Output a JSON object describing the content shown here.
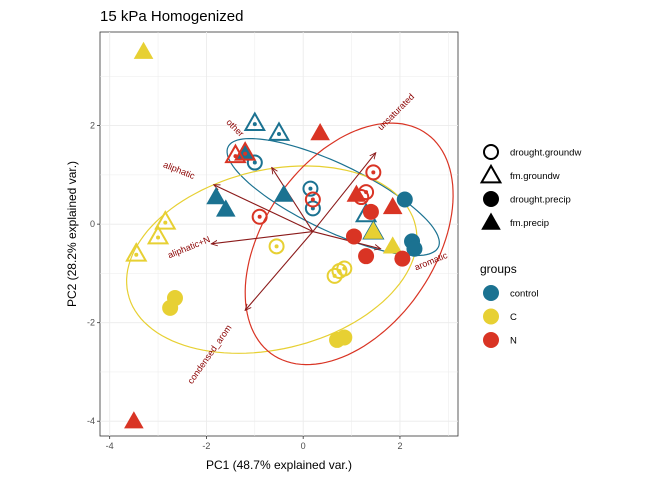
{
  "chart_data": {
    "type": "scatter",
    "title": "15 kPa Homogenized",
    "xlabel": "PC1 (48.7% explained var.)",
    "ylabel": "PC2 (28.2% explained var.)",
    "xlim": [
      -4.2,
      3.2
    ],
    "ylim": [
      -4.3,
      3.9
    ],
    "x_ticks": [
      -4,
      -2,
      0,
      2
    ],
    "y_ticks": [
      -4,
      -2,
      0,
      2
    ],
    "grid": true,
    "legend_position": "right",
    "colors": {
      "control": "#1B7291",
      "C": "#E7D033",
      "N": "#D93424",
      "arrow": "#8B1A1A"
    },
    "shape_legend": {
      "entries": [
        {
          "name": "drought.groundw",
          "shape": "circle-open"
        },
        {
          "name": "fm.groundw",
          "shape": "triangle-open"
        },
        {
          "name": "drought.precip",
          "shape": "circle-filled"
        },
        {
          "name": "fm.precip",
          "shape": "triangle-filled"
        }
      ]
    },
    "color_legend": {
      "title": "groups",
      "entries": [
        {
          "name": "control",
          "color": "#1B7291"
        },
        {
          "name": "C",
          "color": "#E7D033"
        },
        {
          "name": "N",
          "color": "#D93424"
        }
      ]
    },
    "loadings": [
      {
        "label": "unsaturated",
        "x": 1.5,
        "y": 1.45
      },
      {
        "label": "other",
        "x": -0.65,
        "y": 1.15
      },
      {
        "label": "aliphatic",
        "x": -1.85,
        "y": 0.8
      },
      {
        "label": "aliphatic+N",
        "x": -1.9,
        "y": -0.4
      },
      {
        "label": "aromatic",
        "x": 1.6,
        "y": -0.5
      },
      {
        "label": "condensed_arom",
        "x": -1.2,
        "y": -1.75
      }
    ],
    "arrow_origin": [
      0.2,
      -0.15
    ],
    "ellipses": [
      {
        "group": "control",
        "cx": 0.62,
        "cy": 0.55,
        "rx": 2.4,
        "ry": 0.68,
        "angle_deg": -25.0
      },
      {
        "group": "C",
        "cx": -0.65,
        "cy": -0.72,
        "rx": 3.05,
        "ry": 1.82,
        "angle_deg": 13.0
      },
      {
        "group": "N",
        "cx": 0.95,
        "cy": -0.4,
        "rx": 2.75,
        "ry": 1.75,
        "angle_deg": 54.0
      }
    ],
    "points": [
      {
        "x": -1.0,
        "y": 2.05,
        "group": "control",
        "type": "fm.groundw"
      },
      {
        "x": -0.5,
        "y": 1.85,
        "group": "control",
        "type": "fm.groundw"
      },
      {
        "x": -1.2,
        "y": 1.45,
        "group": "control",
        "type": "fm.precip"
      },
      {
        "x": -1.0,
        "y": 1.25,
        "group": "control",
        "type": "drought.groundw"
      },
      {
        "x": -1.8,
        "y": 0.55,
        "group": "control",
        "type": "fm.precip"
      },
      {
        "x": -1.6,
        "y": 0.3,
        "group": "control",
        "type": "fm.precip"
      },
      {
        "x": -0.4,
        "y": 0.6,
        "group": "control",
        "type": "fm.precip"
      },
      {
        "x": 0.15,
        "y": 0.72,
        "group": "control",
        "type": "drought.groundw"
      },
      {
        "x": 0.2,
        "y": 0.32,
        "group": "control",
        "type": "drought.groundw"
      },
      {
        "x": 1.3,
        "y": 0.2,
        "group": "control",
        "type": "fm.groundw"
      },
      {
        "x": 1.45,
        "y": -0.15,
        "group": "control",
        "type": "fm.groundw"
      },
      {
        "x": 2.1,
        "y": 0.5,
        "group": "control",
        "type": "drought.precip"
      },
      {
        "x": 2.25,
        "y": -0.35,
        "group": "control",
        "type": "drought.precip"
      },
      {
        "x": 2.3,
        "y": -0.5,
        "group": "control",
        "type": "drought.precip"
      },
      {
        "x": -3.3,
        "y": 3.5,
        "group": "C",
        "type": "fm.precip"
      },
      {
        "x": -2.85,
        "y": 0.05,
        "group": "C",
        "type": "fm.groundw"
      },
      {
        "x": -3.0,
        "y": -0.25,
        "group": "C",
        "type": "fm.groundw"
      },
      {
        "x": -3.45,
        "y": -0.6,
        "group": "C",
        "type": "fm.groundw"
      },
      {
        "x": -2.65,
        "y": -1.5,
        "group": "C",
        "type": "drought.precip"
      },
      {
        "x": -2.75,
        "y": -1.7,
        "group": "C",
        "type": "drought.precip"
      },
      {
        "x": -0.55,
        "y": -0.45,
        "group": "C",
        "type": "drought.groundw"
      },
      {
        "x": 0.65,
        "y": -1.05,
        "group": "C",
        "type": "drought.groundw"
      },
      {
        "x": 0.85,
        "y": -0.9,
        "group": "C",
        "type": "drought.groundw"
      },
      {
        "x": 0.75,
        "y": -0.95,
        "group": "C",
        "type": "drought.groundw"
      },
      {
        "x": 0.7,
        "y": -2.35,
        "group": "C",
        "type": "drought.precip"
      },
      {
        "x": 0.85,
        "y": -2.3,
        "group": "C",
        "type": "drought.precip"
      },
      {
        "x": 1.45,
        "y": -0.15,
        "group": "C",
        "type": "fm.precip"
      },
      {
        "x": 1.85,
        "y": -0.45,
        "group": "C",
        "type": "fm.precip"
      },
      {
        "x": -1.4,
        "y": 1.4,
        "group": "N",
        "type": "fm.groundw"
      },
      {
        "x": -1.2,
        "y": 1.45,
        "group": "N",
        "type": "fm.groundw"
      },
      {
        "x": 0.35,
        "y": 1.85,
        "group": "N",
        "type": "fm.precip"
      },
      {
        "x": -0.9,
        "y": 0.15,
        "group": "N",
        "type": "drought.groundw"
      },
      {
        "x": 0.2,
        "y": 0.5,
        "group": "N",
        "type": "drought.groundw"
      },
      {
        "x": 1.3,
        "y": 0.65,
        "group": "N",
        "type": "drought.groundw"
      },
      {
        "x": 1.45,
        "y": 1.05,
        "group": "N",
        "type": "drought.groundw"
      },
      {
        "x": 1.2,
        "y": 0.55,
        "group": "N",
        "type": "drought.groundw"
      },
      {
        "x": 1.1,
        "y": 0.6,
        "group": "N",
        "type": "fm.precip"
      },
      {
        "x": 1.4,
        "y": 0.25,
        "group": "N",
        "type": "drought.precip"
      },
      {
        "x": 1.05,
        "y": -0.25,
        "group": "N",
        "type": "drought.precip"
      },
      {
        "x": 1.3,
        "y": -0.65,
        "group": "N",
        "type": "drought.precip"
      },
      {
        "x": 1.85,
        "y": 0.35,
        "group": "N",
        "type": "fm.precip"
      },
      {
        "x": 2.05,
        "y": -0.7,
        "group": "N",
        "type": "drought.precip"
      },
      {
        "x": -3.5,
        "y": -4.0,
        "group": "N",
        "type": "fm.precip"
      }
    ]
  }
}
